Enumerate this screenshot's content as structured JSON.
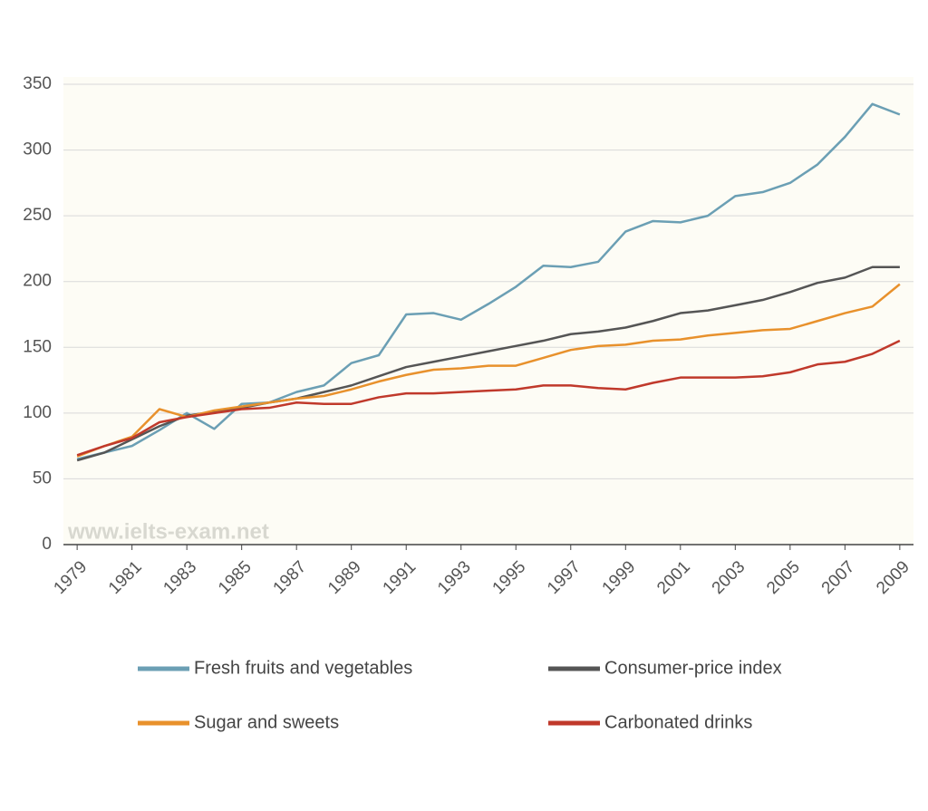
{
  "chart_data": {
    "type": "line",
    "x": [
      1979,
      1980,
      1981,
      1982,
      1983,
      1984,
      1985,
      1986,
      1987,
      1988,
      1989,
      1990,
      1991,
      1992,
      1993,
      1994,
      1995,
      1996,
      1997,
      1998,
      1999,
      2000,
      2001,
      2002,
      2003,
      2004,
      2005,
      2006,
      2007,
      2008,
      2009
    ],
    "xlim": [
      1978.5,
      2009.5
    ],
    "xticks": [
      1979,
      1981,
      1983,
      1985,
      1987,
      1989,
      1991,
      1993,
      1995,
      1997,
      1999,
      2001,
      2003,
      2005,
      2007,
      2009
    ],
    "ylim": [
      0,
      350
    ],
    "yticks": [
      0,
      50,
      100,
      150,
      200,
      250,
      300,
      350
    ],
    "grid": true,
    "annotation": "www.ielts-exam.net",
    "series": [
      {
        "name": "Fresh fruits and vegetables",
        "color": "#6b9fb4",
        "values": [
          65,
          70,
          75,
          87,
          100,
          88,
          107,
          108,
          116,
          121,
          138,
          144,
          175,
          176,
          171,
          183,
          196,
          212,
          211,
          215,
          238,
          246,
          245,
          250,
          265,
          268,
          275,
          289,
          310,
          335,
          327
        ]
      },
      {
        "name": "Consumer-price index",
        "color": "#555555",
        "values": [
          64,
          70,
          80,
          90,
          98,
          101,
          104,
          108,
          111,
          116,
          121,
          128,
          135,
          139,
          143,
          147,
          151,
          155,
          160,
          162,
          165,
          170,
          176,
          178,
          182,
          186,
          192,
          199,
          203,
          211,
          211
        ]
      },
      {
        "name": "Sugar and sweets",
        "color": "#e8912c",
        "values": [
          67,
          75,
          82,
          103,
          97,
          102,
          105,
          108,
          111,
          113,
          118,
          124,
          129,
          133,
          134,
          136,
          136,
          142,
          148,
          151,
          152,
          155,
          156,
          159,
          161,
          163,
          164,
          170,
          176,
          181,
          198
        ]
      },
      {
        "name": "Carbonated drinks",
        "color": "#c0392b",
        "values": [
          68,
          75,
          81,
          93,
          97,
          100,
          103,
          104,
          108,
          107,
          107,
          112,
          115,
          115,
          116,
          117,
          118,
          121,
          121,
          119,
          118,
          123,
          127,
          127,
          127,
          128,
          131,
          137,
          139,
          145,
          155
        ]
      }
    ]
  }
}
